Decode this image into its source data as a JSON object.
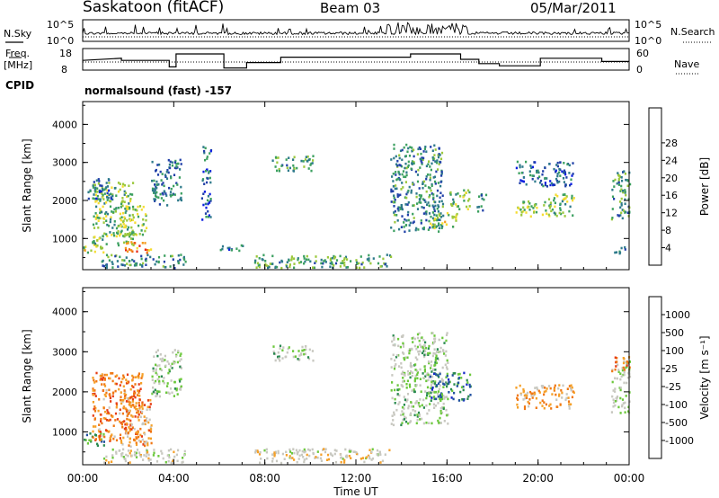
{
  "header": {
    "station": "Saskatoon (fitACF)",
    "beam": "Beam 03",
    "date": "05/Mar/2011"
  },
  "top_strips": {
    "nsky_label": "N.Sky",
    "nsky_top_tick": "10^5",
    "nsky_bottom_tick": "10^0",
    "nsearch_label": "N.Search",
    "nsearch_top_tick": "10^5",
    "nsearch_bottom_tick": "10^0",
    "freq_label_1": "Freq.",
    "freq_label_2": "[MHz]",
    "freq_top_tick": "18",
    "freq_bottom_tick": "8",
    "nave_label": "Nave",
    "nave_top_tick": "60",
    "nave_bottom_tick": "0",
    "cpid_label": "CPID",
    "cpid_value": "normalsound (fast) -157"
  },
  "axes": {
    "ylabel": "Slant Range [km]",
    "xlabel": "Time UT",
    "y_ticks": [
      "1000",
      "2000",
      "3000",
      "4000"
    ],
    "x_ticks": [
      "00:00",
      "04:00",
      "08:00",
      "12:00",
      "16:00",
      "20:00",
      "00:00"
    ]
  },
  "colorbars": {
    "power": {
      "label": "Power [dB]",
      "ticks": [
        "4",
        "8",
        "12",
        "16",
        "20",
        "24",
        "28"
      ],
      "colors": [
        "#0a1ee0",
        "#2040a8",
        "#2e7a8a",
        "#3ca060",
        "#9bc83c",
        "#f5dc32",
        "#f59b1e",
        "#f06a14",
        "#e62814"
      ]
    },
    "velocity": {
      "label": "Velocity [m s⁻¹]",
      "ticks": [
        "1000",
        "500",
        "100",
        "25",
        "-25",
        "-100",
        "-500",
        "-1000"
      ],
      "colors": [
        "#1428c8",
        "#2050a0",
        "#2a8a50",
        "#6cc83c",
        "#c8c8c0",
        "#c8c8c0",
        "#f5a028",
        "#f07814",
        "#e63c14"
      ]
    }
  },
  "chart_data": [
    {
      "type": "heatmap",
      "panel": "power",
      "xlim": [
        0,
        24
      ],
      "ylim": [
        180,
        4600
      ],
      "x_unit": "hours UT",
      "y_unit": "km",
      "regions": [
        {
          "t0": 0.0,
          "t1": 0.9,
          "r0": 650,
          "r1": 1000,
          "level": 0.55
        },
        {
          "t0": 0.4,
          "t1": 2.2,
          "r0": 800,
          "r1": 2500,
          "level": 0.45
        },
        {
          "t0": 1.8,
          "t1": 3.0,
          "r0": 650,
          "r1": 950,
          "level": 0.85
        },
        {
          "t0": 1.6,
          "t1": 2.8,
          "r0": 1100,
          "r1": 1900,
          "level": 0.5
        },
        {
          "t0": 0.2,
          "t1": 1.3,
          "r0": 2000,
          "r1": 2600,
          "level": 0.2
        },
        {
          "t0": 3.0,
          "t1": 4.3,
          "r0": 1900,
          "r1": 3100,
          "level": 0.25
        },
        {
          "t0": 5.2,
          "t1": 5.6,
          "r0": 1500,
          "r1": 3500,
          "level": 0.2
        },
        {
          "t0": 8.3,
          "t1": 10.1,
          "r0": 2800,
          "r1": 3200,
          "level": 0.35
        },
        {
          "t0": 6.0,
          "t1": 7.0,
          "r0": 700,
          "r1": 900,
          "level": 0.2
        },
        {
          "t0": 7.5,
          "t1": 13.5,
          "r0": 250,
          "r1": 600,
          "level": 0.35
        },
        {
          "t0": 0.8,
          "t1": 4.5,
          "r0": 250,
          "r1": 600,
          "level": 0.3
        },
        {
          "t0": 13.5,
          "t1": 15.8,
          "r0": 1200,
          "r1": 3500,
          "level": 0.3
        },
        {
          "t0": 15.2,
          "t1": 16.4,
          "r0": 1300,
          "r1": 1700,
          "level": 0.55
        },
        {
          "t0": 16.0,
          "t1": 17.0,
          "r0": 1800,
          "r1": 2300,
          "level": 0.45
        },
        {
          "t0": 17.3,
          "t1": 17.7,
          "r0": 1700,
          "r1": 2200,
          "level": 0.25
        },
        {
          "t0": 19.0,
          "t1": 20.6,
          "r0": 1600,
          "r1": 2000,
          "level": 0.5
        },
        {
          "t0": 20.4,
          "t1": 21.6,
          "r0": 1600,
          "r1": 2200,
          "level": 0.45
        },
        {
          "t0": 19.0,
          "t1": 21.5,
          "r0": 2400,
          "r1": 3050,
          "level": 0.2
        },
        {
          "t0": 23.2,
          "t1": 24.0,
          "r0": 1500,
          "r1": 2800,
          "level": 0.35
        },
        {
          "t0": 23.2,
          "t1": 23.8,
          "r0": 600,
          "r1": 800,
          "level": 0.3
        }
      ]
    },
    {
      "type": "heatmap",
      "panel": "velocity",
      "xlim": [
        0,
        24
      ],
      "ylim": [
        180,
        4600
      ],
      "x_unit": "hours UT",
      "y_unit": "km",
      "regions": [
        {
          "t0": 0.0,
          "t1": 0.9,
          "r0": 650,
          "r1": 1000,
          "level": 0.3
        },
        {
          "t0": 0.4,
          "t1": 2.6,
          "r0": 800,
          "r1": 2500,
          "level": 0.85
        },
        {
          "t0": 1.6,
          "t1": 3.0,
          "r0": 650,
          "r1": 1900,
          "level": 0.8
        },
        {
          "t0": 3.0,
          "t1": 4.3,
          "r0": 1900,
          "r1": 3100,
          "level": 0.45
        },
        {
          "t0": 8.3,
          "t1": 10.1,
          "r0": 2800,
          "r1": 3200,
          "level": 0.45
        },
        {
          "t0": 7.5,
          "t1": 13.5,
          "r0": 250,
          "r1": 600,
          "level": 0.6
        },
        {
          "t0": 0.8,
          "t1": 4.5,
          "r0": 250,
          "r1": 600,
          "level": 0.55
        },
        {
          "t0": 13.5,
          "t1": 16.0,
          "r0": 1200,
          "r1": 3500,
          "level": 0.45
        },
        {
          "t0": 15.2,
          "t1": 17.0,
          "r0": 1800,
          "r1": 2500,
          "level": 0.2
        },
        {
          "t0": 19.0,
          "t1": 21.6,
          "r0": 1600,
          "r1": 2200,
          "level": 0.75
        },
        {
          "t0": 23.2,
          "t1": 24.0,
          "r0": 1500,
          "r1": 2800,
          "level": 0.5
        },
        {
          "t0": 23.2,
          "t1": 24.0,
          "r0": 2500,
          "r1": 2900,
          "level": 0.85
        }
      ]
    }
  ]
}
